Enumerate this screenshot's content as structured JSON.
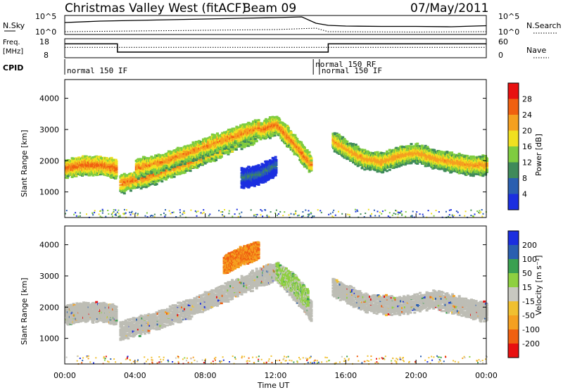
{
  "header": {
    "title": "Christmas Valley West (fitACF)",
    "beam": "Beam 09",
    "date": "07/May/2011"
  },
  "top_panel": {
    "nsky_label": "N.Sky",
    "nsky_ticks": [
      "10^5",
      "10^0"
    ],
    "nsearch_label": "N.Search",
    "nsearch_ticks": [
      "10^5",
      "10^0"
    ]
  },
  "freq_panel": {
    "freq_label": "Freq.",
    "freq_unit": "[MHz]",
    "freq_ticks": [
      "18",
      "8"
    ],
    "nave_label": "Nave",
    "nave_ticks": [
      "60",
      "0"
    ],
    "freq_series": {
      "x": [
        0,
        3.0,
        3.0,
        15.0,
        15.0,
        24
      ],
      "y": [
        15.5,
        15.5,
        10.8,
        10.8,
        15.5,
        15.5
      ]
    },
    "nave_series": {
      "x": [
        0,
        24
      ],
      "y": [
        33,
        33
      ]
    }
  },
  "cpid": {
    "label": "CPID",
    "segments": [
      {
        "start": 0,
        "text": "normal 150 IF",
        "row": 1
      },
      {
        "start": 14.15,
        "text": "normal 150 RF",
        "row": 0
      },
      {
        "start": 14.5,
        "text": "normal 150 IF",
        "row": 1
      }
    ]
  },
  "axes": {
    "ylabel": "Slant Range [km]",
    "yticks": [
      "1000",
      "2000",
      "3000",
      "4000"
    ],
    "xlabel": "Time UT",
    "xticks": [
      "00:00",
      "04:00",
      "08:00",
      "12:00",
      "16:00",
      "20:00",
      "00:00"
    ]
  },
  "colorbars": {
    "power": {
      "label": "Power [dB]",
      "ticks": [
        "4",
        "8",
        "12",
        "16",
        "20",
        "24",
        "28"
      ]
    },
    "velocity": {
      "label": "Velocity [m s⁻¹]",
      "ticks": [
        "200",
        "100",
        "50",
        "15",
        "-15",
        "-50",
        "-100",
        "-200"
      ]
    }
  },
  "colors": {
    "power_scale": [
      "#1b2fe0",
      "#2a5fb0",
      "#3f8a5a",
      "#7fcc40",
      "#f0e020",
      "#f5a020",
      "#f06010",
      "#e81010"
    ],
    "velocity_scale": [
      "#1b2fe0",
      "#2a5fb0",
      "#3aa050",
      "#8ed040",
      "#c8c8c0",
      "#f0c030",
      "#f5a020",
      "#f06010",
      "#e81010"
    ],
    "ground_scatter": "#bdbdb5"
  },
  "chart_data": [
    {
      "type": "line",
      "title": "Christmas Valley West (fitACF)",
      "xlabel": "",
      "ylabel": "N.Sky",
      "xlim": [
        0,
        24
      ],
      "series": [
        {
          "name": "N.Sky",
          "x": [
            0,
            2,
            4,
            6,
            8,
            10,
            12,
            13.5,
            14.3,
            15,
            16,
            18,
            20,
            22,
            24
          ],
          "y": [
            3.2,
            3.6,
            3.8,
            4.0,
            4.2,
            4.4,
            4.6,
            4.8,
            3.0,
            2.4,
            2.2,
            2.1,
            2.1,
            2.0,
            2.3
          ]
        },
        {
          "name": "N.Search",
          "x": [
            0,
            4,
            8,
            12,
            14.3,
            15,
            20,
            24
          ],
          "y": [
            0.6,
            0.8,
            1.0,
            1.2,
            1.6,
            0.6,
            0.5,
            0.6
          ]
        }
      ]
    },
    {
      "type": "heatmap",
      "title": "Power [dB]",
      "xlabel": "Time UT",
      "ylabel": "Slant Range [km]",
      "xlim": [
        0,
        24
      ],
      "ylim": [
        180,
        4600
      ],
      "clim": [
        0,
        30
      ],
      "series": [
        {
          "x": [
            0,
            1,
            2,
            2.9
          ],
          "y": [
            1800,
            1900,
            1900,
            1800
          ],
          "value": 28
        },
        {
          "x": [
            3.1,
            5,
            7,
            9,
            11,
            12,
            13,
            14
          ],
          "y": [
            1300,
            1600,
            2000,
            2500,
            3000,
            3200,
            2600,
            1900
          ],
          "value": 27
        },
        {
          "x": [
            4,
            5.5,
            7,
            8.5,
            10,
            11
          ],
          "y": [
            1800,
            2000,
            2300,
            2600,
            2900,
            3100
          ],
          "value": 26
        },
        {
          "x": [
            15.2,
            16,
            17,
            18,
            19,
            20,
            21,
            22,
            23,
            24
          ],
          "y": [
            2700,
            2400,
            2100,
            2000,
            2200,
            2300,
            2100,
            2000,
            1900,
            1900
          ],
          "value": 25
        },
        {
          "x": [
            10,
            11,
            12
          ],
          "y": [
            1500,
            1600,
            1900
          ],
          "value": 10
        }
      ]
    },
    {
      "type": "heatmap",
      "title": "Velocity [m s⁻¹]",
      "xlabel": "Time UT",
      "ylabel": "Slant Range [km]",
      "xlim": [
        0,
        24
      ],
      "ylim": [
        180,
        4600
      ],
      "clim": [
        -200,
        200
      ],
      "series": [
        {
          "x": [
            0,
            1,
            2,
            2.9
          ],
          "y": [
            1800,
            1900,
            1900,
            1800
          ],
          "value": 0
        },
        {
          "x": [
            3.1,
            5,
            7,
            9,
            11,
            12,
            13,
            14
          ],
          "y": [
            1300,
            1600,
            2000,
            2500,
            3000,
            3200,
            2600,
            1900
          ],
          "value": 0
        },
        {
          "x": [
            12,
            13,
            13.8
          ],
          "y": [
            3200,
            2800,
            2300
          ],
          "value": 40
        },
        {
          "x": [
            9,
            10,
            11
          ],
          "y": [
            3400,
            3700,
            3900
          ],
          "value": -120
        },
        {
          "x": [
            15.2,
            17,
            19,
            21,
            23,
            24
          ],
          "y": [
            2700,
            2200,
            2100,
            2300,
            2000,
            1900
          ],
          "value": 0
        }
      ]
    }
  ]
}
